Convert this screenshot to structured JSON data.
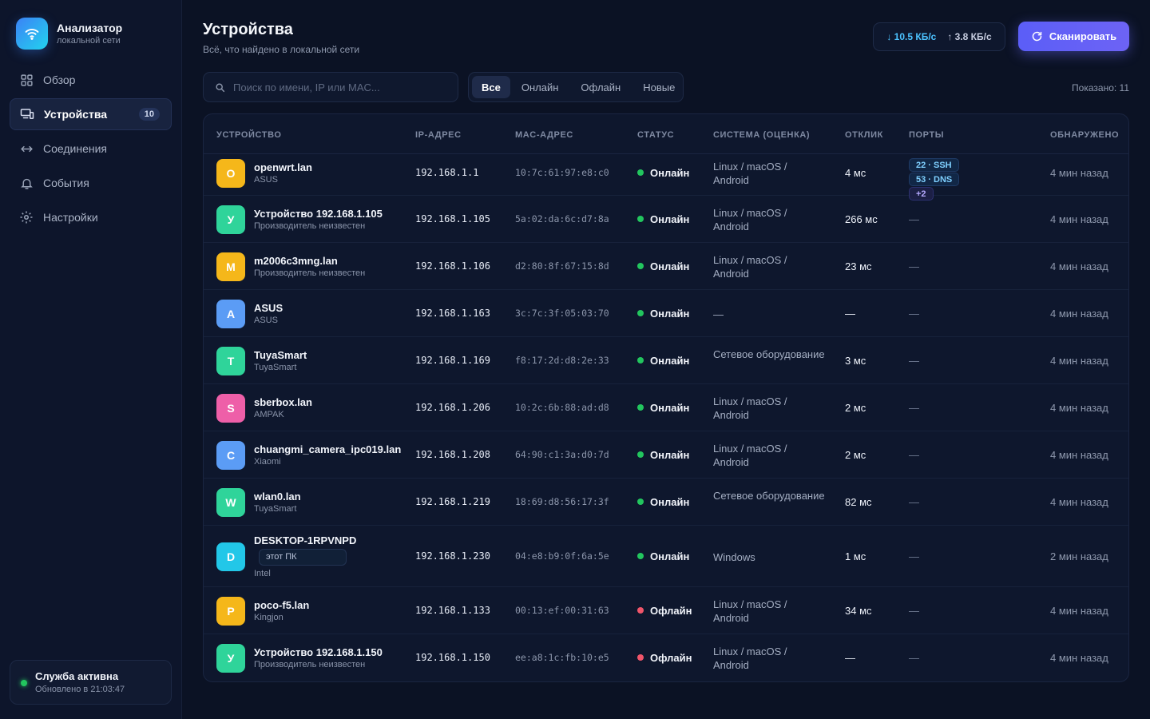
{
  "app": {
    "title": "Анализатор",
    "subtitle": "локальной сети"
  },
  "nav": [
    {
      "label": "Обзор",
      "icon": "grid-icon",
      "active": false
    },
    {
      "label": "Устройства",
      "icon": "devices-icon",
      "active": true,
      "badge": "10"
    },
    {
      "label": "Соединения",
      "icon": "arrows-icon",
      "active": false
    },
    {
      "label": "События",
      "icon": "bell-icon",
      "active": false
    },
    {
      "label": "Настройки",
      "icon": "gear-icon",
      "active": false
    }
  ],
  "service": {
    "title": "Служба активна",
    "updated": "Обновлено в 21:03:47"
  },
  "header": {
    "title": "Устройства",
    "subtitle": "Всё, что найдено в локальной сети",
    "traffic_down": "↓ 10.5 КБ/с",
    "traffic_up": "↑ 3.8 КБ/с",
    "scan_label": "Сканировать"
  },
  "toolbar": {
    "search_placeholder": "Поиск по имени, IP или MAC...",
    "filters": [
      "Все",
      "Онлайн",
      "Офлайн",
      "Новые"
    ],
    "active_filter": "Все",
    "shown": "Показано: 11"
  },
  "table": {
    "columns": [
      "УСТРОЙСТВО",
      "IP-АДРЕС",
      "MAC-АДРЕС",
      "СТАТУС",
      "СИСТЕМА (ОЦЕНКА)",
      "ОТКЛИК",
      "ПОРТЫ",
      "ОБНАРУЖЕНО"
    ],
    "rows": [
      {
        "initial": "O",
        "color": "#f5b71a",
        "name": "openwrt.lan",
        "vendor": "ASUS",
        "tag": "",
        "ip": "192.168.1.1",
        "mac": "10:7c:61:97:e8:c0",
        "status": "Онлайн",
        "online": true,
        "os": "Linux / macOS / Android",
        "rtt": "4 мс",
        "ports": [
          "22 · SSH",
          "53 · DNS",
          "+2"
        ],
        "seen": "4 мин назад"
      },
      {
        "initial": "У",
        "color": "#2fd49a",
        "name": "Устройство 192.168.1.105",
        "vendor": "Производитель неизвестен",
        "tag": "",
        "ip": "192.168.1.105",
        "mac": "5a:02:da:6c:d7:8a",
        "status": "Онлайн",
        "online": true,
        "os": "Linux / macOS / Android",
        "rtt": "266 мс",
        "ports": [],
        "seen": "4 мин назад"
      },
      {
        "initial": "M",
        "color": "#f5b71a",
        "name": "m2006c3mng.lan",
        "vendor": "Производитель неизвестен",
        "tag": "",
        "ip": "192.168.1.106",
        "mac": "d2:80:8f:67:15:8d",
        "status": "Онлайн",
        "online": true,
        "os": "Linux / macOS / Android",
        "rtt": "23 мс",
        "ports": [],
        "seen": "4 мин назад"
      },
      {
        "initial": "A",
        "color": "#5b9cf5",
        "name": "ASUS",
        "vendor": "ASUS",
        "tag": "",
        "ip": "192.168.1.163",
        "mac": "3c:7c:3f:05:03:70",
        "status": "Онлайн",
        "online": true,
        "os": "—",
        "rtt": "—",
        "ports": [],
        "seen": "4 мин назад"
      },
      {
        "initial": "T",
        "color": "#2fd49a",
        "name": "TuyaSmart",
        "vendor": "TuyaSmart",
        "tag": "",
        "ip": "192.168.1.169",
        "mac": "f8:17:2d:d8:2e:33",
        "status": "Онлайн",
        "online": true,
        "os": "Сетевое оборудование",
        "rtt": "3 мс",
        "ports": [],
        "seen": "4 мин назад"
      },
      {
        "initial": "S",
        "color": "#ee5fa8",
        "name": "sberbox.lan",
        "vendor": "AMPAK",
        "tag": "",
        "ip": "192.168.1.206",
        "mac": "10:2c:6b:88:ad:d8",
        "status": "Онлайн",
        "online": true,
        "os": "Linux / macOS / Android",
        "rtt": "2 мс",
        "ports": [],
        "seen": "4 мин назад"
      },
      {
        "initial": "C",
        "color": "#5b9cf5",
        "name": "chuangmi_camera_ipc019.lan",
        "vendor": "Xiaomi",
        "tag": "",
        "ip": "192.168.1.208",
        "mac": "64:90:c1:3a:d0:7d",
        "status": "Онлайн",
        "online": true,
        "os": "Linux / macOS / Android",
        "rtt": "2 мс",
        "ports": [],
        "seen": "4 мин назад"
      },
      {
        "initial": "W",
        "color": "#2fd49a",
        "name": "wlan0.lan",
        "vendor": "TuyaSmart",
        "tag": "",
        "ip": "192.168.1.219",
        "mac": "18:69:d8:56:17:3f",
        "status": "Онлайн",
        "online": true,
        "os": "Сетевое оборудование",
        "rtt": "82 мс",
        "ports": [],
        "seen": "4 мин назад"
      },
      {
        "initial": "D",
        "color": "#22c7e8",
        "name": "DESKTOP-1RPVNPD",
        "vendor": "Intel",
        "tag": "этот ПК",
        "ip": "192.168.1.230",
        "mac": "04:e8:b9:0f:6a:5e",
        "status": "Онлайн",
        "online": true,
        "os": "Windows",
        "rtt": "1 мс",
        "ports": [],
        "seen": "2 мин назад"
      },
      {
        "initial": "P",
        "color": "#f5b71a",
        "name": "poco-f5.lan",
        "vendor": "Kingjon",
        "tag": "",
        "ip": "192.168.1.133",
        "mac": "00:13:ef:00:31:63",
        "status": "Офлайн",
        "online": false,
        "os": "Linux / macOS / Android",
        "rtt": "34 мс",
        "ports": [],
        "seen": "4 мин назад"
      },
      {
        "initial": "У",
        "color": "#2fd49a",
        "name": "Устройство 192.168.1.150",
        "vendor": "Производитель неизвестен",
        "tag": "",
        "ip": "192.168.1.150",
        "mac": "ee:a8:1c:fb:10:e5",
        "status": "Офлайн",
        "online": false,
        "os": "Linux / macOS / Android",
        "rtt": "—",
        "ports": [],
        "seen": "4 мин назад"
      }
    ]
  },
  "colors": {
    "online": "#22c55e",
    "offline": "#f0556a",
    "accent": "#5b5ef7"
  }
}
